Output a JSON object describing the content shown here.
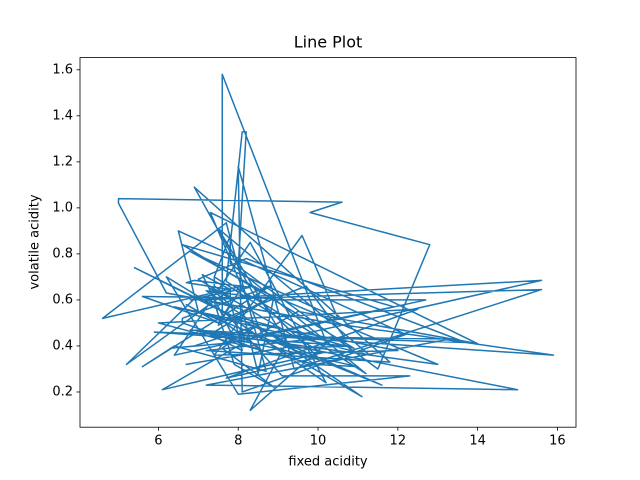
{
  "chart_data": {
    "type": "line",
    "title": "Line Plot",
    "x_label": "fixed acidity",
    "y_label": "volatile acidity",
    "x": [
      7.4,
      7.8,
      7.8,
      11.2,
      7.4,
      7.4,
      7.9,
      7.3,
      7.8,
      7.5,
      6.7,
      7.5,
      5.6,
      7.8,
      8.9,
      8.5,
      8.1,
      7.4,
      7.9,
      8.9,
      7.6,
      7.9,
      8.5,
      6.9,
      6.3,
      7.6,
      7.9,
      7.1,
      7.8,
      6.7,
      6.9,
      8.3,
      6.9,
      5.2,
      7.8,
      7.8,
      8.1,
      7.3,
      8.8,
      7.5,
      8.1,
      4.6,
      7.7,
      8.7,
      6.4,
      5.6,
      8.8,
      6.6,
      6.6,
      8.6,
      7.6,
      7.6,
      10.2,
      7.7,
      8.1,
      8.2,
      8,
      11.5,
      12.8,
      9.8,
      10.6,
      5,
      5,
      6.2,
      10.3,
      15.9,
      9,
      13.3,
      7.2,
      15,
      8.8,
      15.6,
      6.8,
      15.6,
      9.4,
      8,
      8.1,
      12.2,
      6.5,
      7,
      11.6,
      9.2,
      8.3,
      10.4,
      7.2,
      11.8,
      6.9,
      8.4,
      10,
      7.7,
      12.5,
      6,
      9.9,
      11,
      7.1,
      13,
      8.7,
      6.8,
      10.5,
      9.6,
      7.4,
      12,
      8.9,
      6.4,
      11.3,
      7.5,
      9.3,
      10.8,
      5.9,
      13.7,
      8.2,
      7,
      10.1,
      6.1,
      9.5,
      14,
      7.3,
      8.6,
      11.9,
      6.6,
      10.9,
      7.7,
      9.1,
      12.3,
      8,
      6.2,
      7.8,
      9.7,
      10.7,
      6.8,
      8.5,
      11.1,
      7.2,
      9,
      12.7,
      6.4,
      8.3,
      10.2,
      7.6,
      5.4,
      9.4,
      6.7
    ],
    "values": [
      0.7,
      0.88,
      0.76,
      0.28,
      0.7,
      0.66,
      0.6,
      0.65,
      0.58,
      0.5,
      0.58,
      0.5,
      0.615,
      0.61,
      0.62,
      0.28,
      0.56,
      0.59,
      0.32,
      0.22,
      0.39,
      0.43,
      0.49,
      0.4,
      0.39,
      0.41,
      0.43,
      0.71,
      0.645,
      0.675,
      0.685,
      0.655,
      0.605,
      0.32,
      0.645,
      0.6,
      0.38,
      0.45,
      0.61,
      0.49,
      0.66,
      0.52,
      0.935,
      0.29,
      0.4,
      0.31,
      0.66,
      0.52,
      0.5,
      0.38,
      0.51,
      1.58,
      0.42,
      0.68,
      1.33,
      1.33,
      0.745,
      0.3,
      0.84,
      0.98,
      1.025,
      1.04,
      1.02,
      0.63,
      0.5,
      0.36,
      0.44,
      0.43,
      0.23,
      0.21,
      0.42,
      0.685,
      0.6,
      0.645,
      0.3,
      1.18,
      0.2,
      0.45,
      0.9,
      0.55,
      0.23,
      0.41,
      0.12,
      0.44,
      0.38,
      0.33,
      1.09,
      0.62,
      0.35,
      0.26,
      0.56,
      0.5,
      0.32,
      0.31,
      0.46,
      0.32,
      0.63,
      0.81,
      0.52,
      0.88,
      0.36,
      0.38,
      0.48,
      0.57,
      0.36,
      0.91,
      0.39,
      0.4,
      0.46,
      0.415,
      0.78,
      0.69,
      0.37,
      0.21,
      0.55,
      0.41,
      0.98,
      0.45,
      0.57,
      0.84,
      0.39,
      0.54,
      0.27,
      0.27,
      0.19,
      0.7,
      0.53,
      0.66,
      0.43,
      0.47,
      0.44,
      0.18,
      0.64,
      0.6,
      0.6,
      0.36,
      0.85,
      0.24,
      0.55,
      0.74,
      0.4,
      0.32
    ],
    "color": "#1f77b4",
    "xlim": [
      4.035,
      16.465
    ],
    "xticks": [
      6,
      8,
      10,
      12,
      14,
      16
    ],
    "ylim": [
      0.047,
      1.653
    ],
    "yticks": [
      0.2,
      0.4,
      0.6,
      0.8,
      {
        "value": 1,
        "label": "1.0"
      },
      1.2,
      1.4,
      1.6
    ],
    "grid": false
  }
}
